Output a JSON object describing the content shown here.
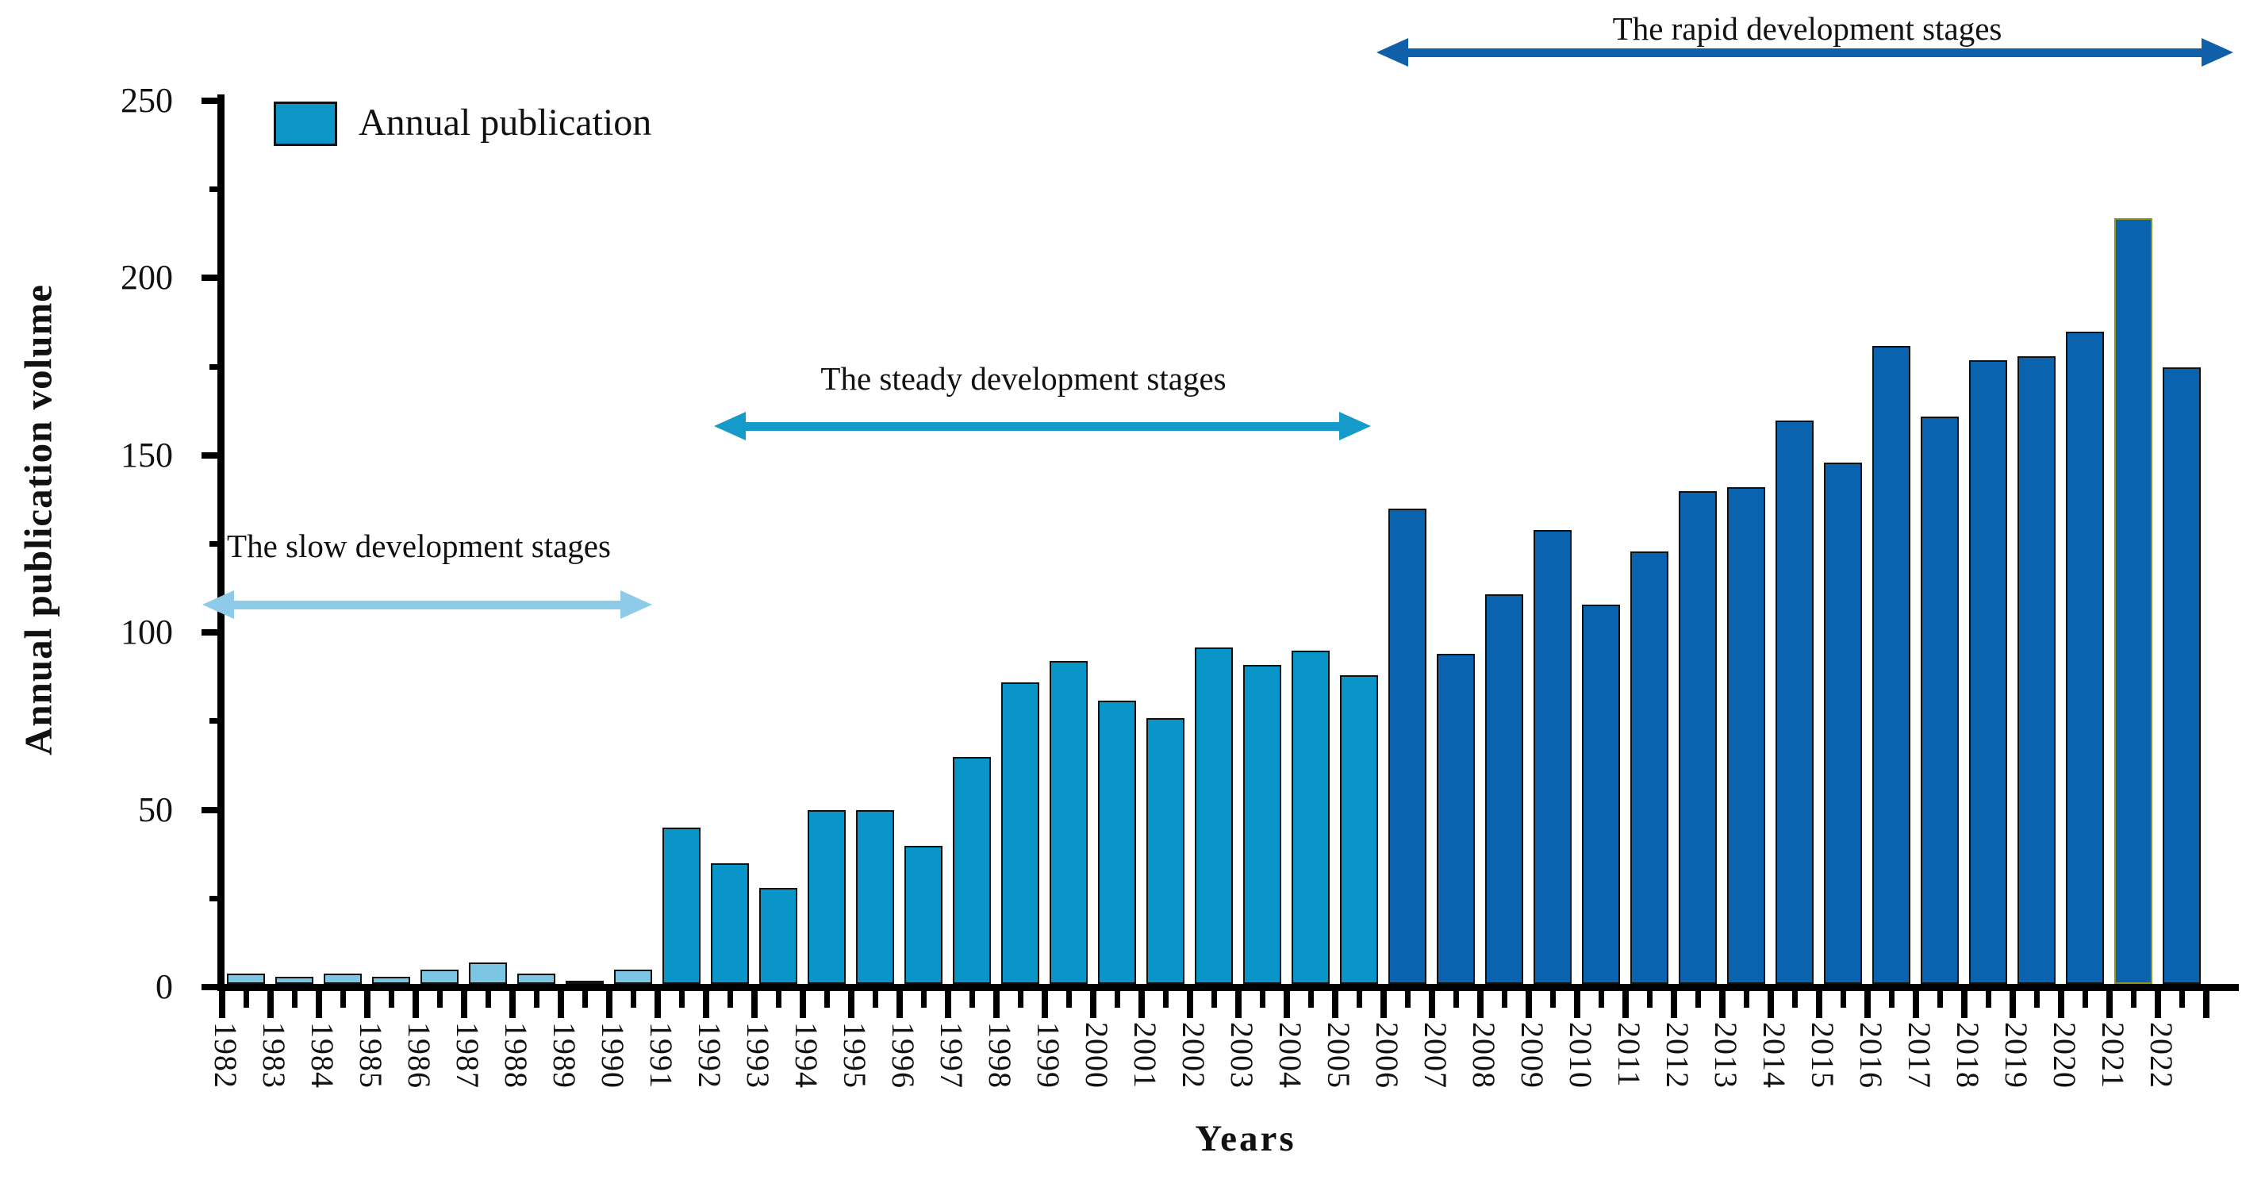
{
  "chart_data": {
    "type": "bar",
    "title": "",
    "xlabel": "Years",
    "ylabel": "Annual publication volume",
    "ylim": [
      0,
      250
    ],
    "yticks_major": [
      0,
      50,
      100,
      150,
      200,
      250
    ],
    "yticks_minor": [
      25,
      75,
      125,
      175,
      225
    ],
    "grid": false,
    "legend": {
      "label": "Annual publication",
      "position": "top-left",
      "swatch_color": "#0d95c8",
      "swatch_border_color": "#111111"
    },
    "categories": [
      "1982",
      "1983",
      "1984",
      "1985",
      "1986",
      "1987",
      "1988",
      "1989",
      "1990",
      "1991",
      "1992",
      "1993",
      "1994",
      "1995",
      "1996",
      "1997",
      "1998",
      "1999",
      "2000",
      "2001",
      "2002",
      "2003",
      "2004",
      "2005",
      "2006",
      "2007",
      "2008",
      "2009",
      "2010",
      "2011",
      "2012",
      "2013",
      "2014",
      "2015",
      "2016",
      "2017",
      "2018",
      "2019",
      "2020",
      "2021",
      "2022"
    ],
    "values": [
      3,
      2,
      3,
      2,
      4,
      6,
      3,
      1,
      4,
      44,
      34,
      27,
      49,
      49,
      39,
      64,
      85,
      91,
      80,
      75,
      95,
      90,
      94,
      87,
      134,
      93,
      110,
      128,
      107,
      122,
      139,
      140,
      159,
      147,
      180,
      160,
      176,
      177,
      184,
      216,
      174
    ],
    "stages": [
      {
        "key": "slow",
        "label": "The slow development stages",
        "start": 1982,
        "end": 1990,
        "bar_color": "#7cc5e3",
        "arrow_color": "#8ecbe8"
      },
      {
        "key": "steady",
        "label": "The steady development stages",
        "start": 1991,
        "end": 2005,
        "bar_color": "#0995c8",
        "arrow_color": "#149bca"
      },
      {
        "key": "rapid",
        "label": "The rapid development stages",
        "start": 2006,
        "end": 2022,
        "bar_color": "#0a63ae",
        "arrow_color": "#0f5fa9"
      }
    ],
    "highlight": {
      "year": "2021",
      "outline_color": "#8f9224"
    },
    "bar_border_color": "#111111"
  }
}
